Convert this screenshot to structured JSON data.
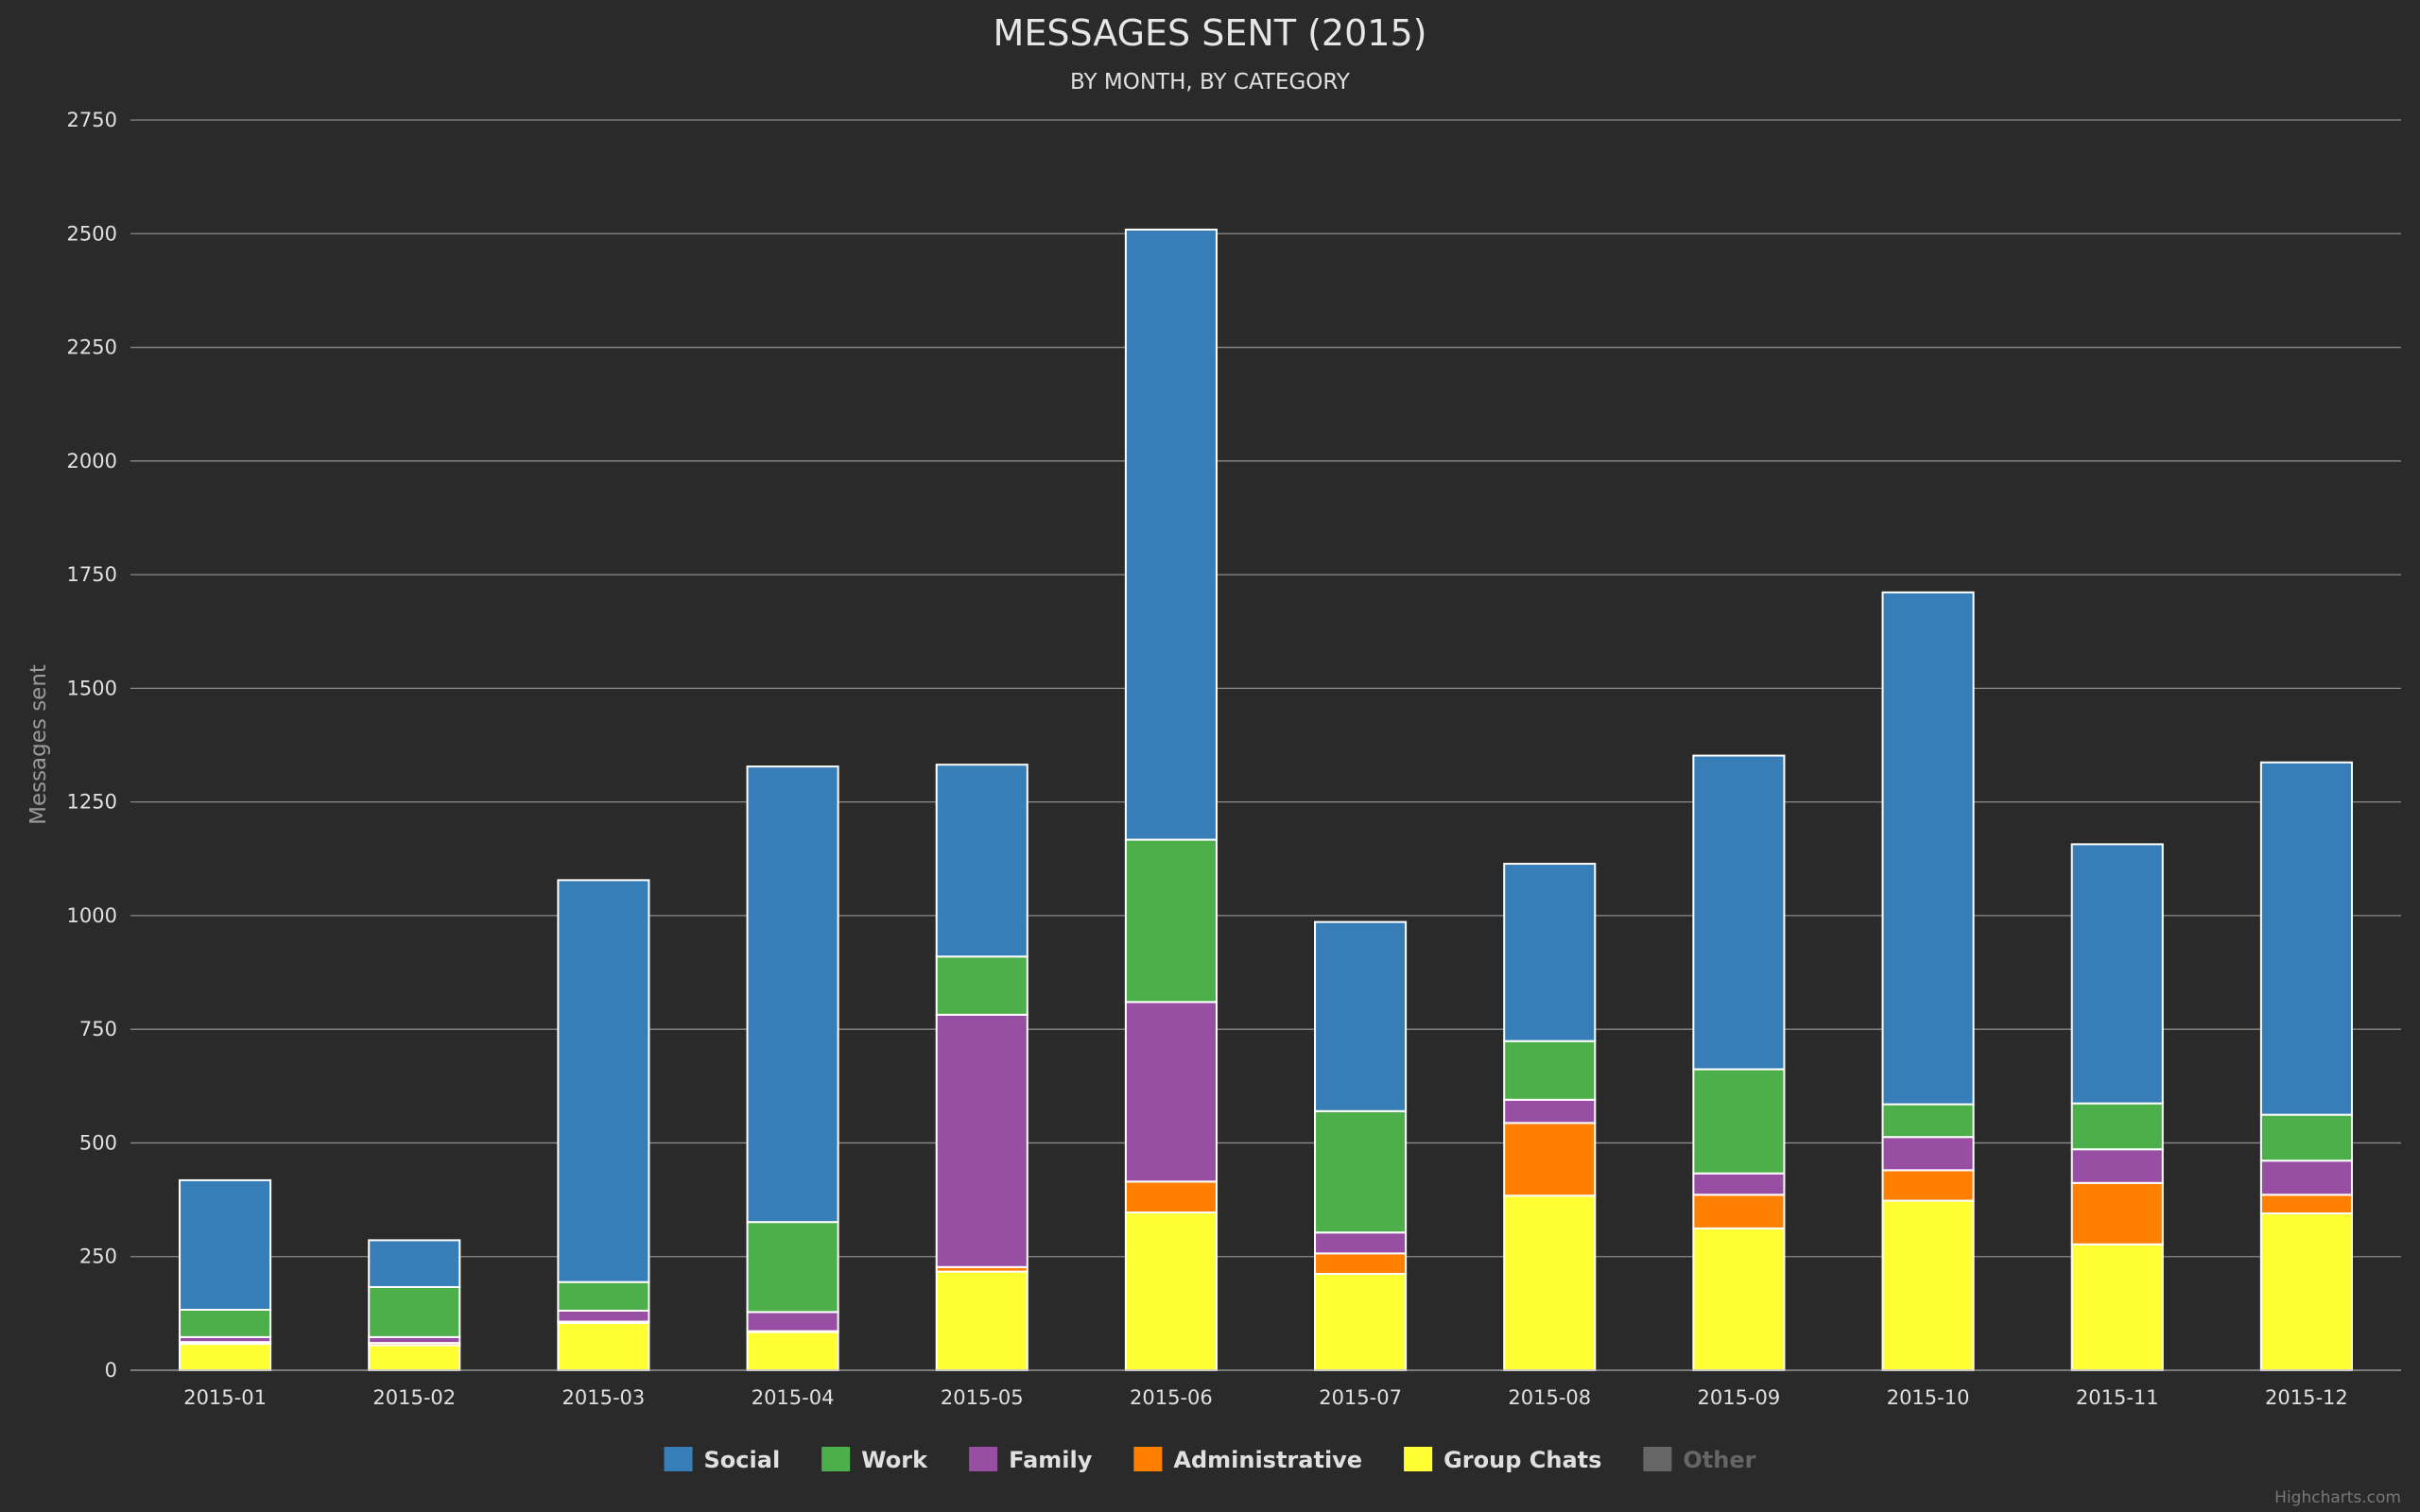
{
  "chart_data": {
    "type": "bar",
    "stacked": true,
    "title": "MESSAGES SENT (2015)",
    "subtitle": "BY MONTH, BY CATEGORY",
    "ylabel": "Messages sent",
    "xlabel": "",
    "ylim": [
      0,
      2750
    ],
    "yticks": [
      0,
      250,
      500,
      750,
      1000,
      1250,
      1500,
      1750,
      2000,
      2250,
      2500,
      2750
    ],
    "grid": true,
    "legend_position": "bottom-center",
    "categories": [
      "2015-01",
      "2015-02",
      "2015-03",
      "2015-04",
      "2015-05",
      "2015-06",
      "2015-07",
      "2015-08",
      "2015-09",
      "2015-10",
      "2015-11",
      "2015-12"
    ],
    "series": [
      {
        "name": "Group Chats",
        "color": "#ffff33",
        "visible": true,
        "values": [
          58,
          55,
          104,
          84,
          217,
          347,
          212,
          384,
          312,
          373,
          277,
          345
        ]
      },
      {
        "name": "Other",
        "color": "#666666",
        "visible": false,
        "values": [
          0,
          0,
          0,
          0,
          0,
          0,
          0,
          0,
          0,
          0,
          0,
          0
        ]
      },
      {
        "name": "Administrative",
        "color": "#ff7f00",
        "visible": true,
        "values": [
          4,
          5,
          3,
          2,
          10,
          68,
          45,
          160,
          74,
          67,
          135,
          41
        ]
      },
      {
        "name": "Family",
        "color": "#984ea3",
        "visible": true,
        "values": [
          11,
          13,
          24,
          42,
          555,
          395,
          46,
          51,
          47,
          73,
          74,
          75
        ]
      },
      {
        "name": "Work",
        "color": "#4daf4a",
        "visible": true,
        "values": [
          60,
          110,
          63,
          198,
          128,
          357,
          267,
          129,
          229,
          72,
          101,
          101
        ]
      },
      {
        "name": "Social",
        "color": "#377eb8",
        "visible": true,
        "values": [
          285,
          103,
          884,
          1002,
          422,
          1342,
          416,
          390,
          690,
          1126,
          570,
          775
        ]
      }
    ],
    "legend_order": [
      "Social",
      "Work",
      "Family",
      "Administrative",
      "Group Chats",
      "Other"
    ],
    "hidden_legend_color": "#666666"
  },
  "credits": "Highcharts.com"
}
